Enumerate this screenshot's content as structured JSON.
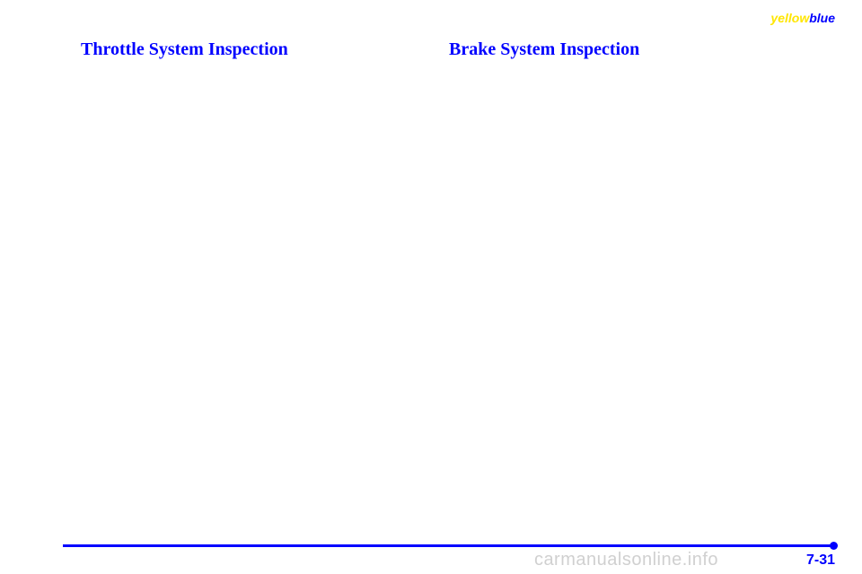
{
  "brand": {
    "part1": "yellow",
    "part2": "blue"
  },
  "columns": {
    "left": {
      "heading": "Throttle System Inspection"
    },
    "right": {
      "heading": "Brake System Inspection"
    }
  },
  "footer": {
    "page_number": "7-31",
    "watermark": "carmanualsonline.info"
  },
  "colors": {
    "blue": "#0000ff",
    "yellow": "#ffe600",
    "watermark": "#d0d0d0",
    "background": "#ffffff"
  }
}
